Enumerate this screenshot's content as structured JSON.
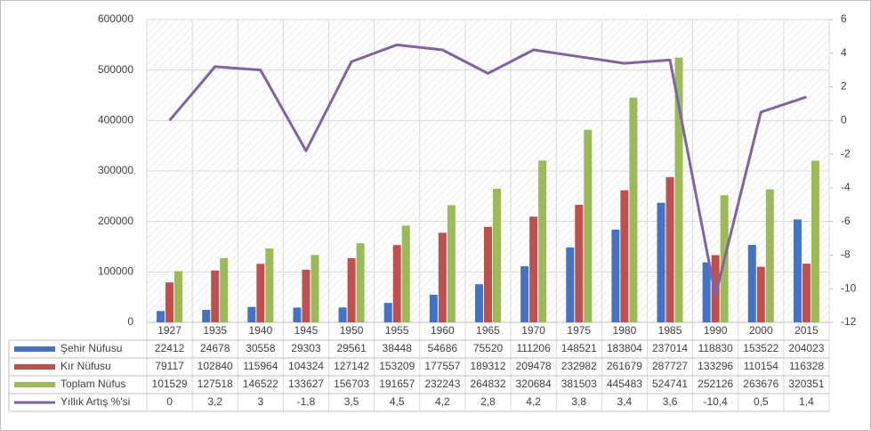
{
  "chart_data": {
    "type": "bar",
    "categories": [
      "1927",
      "1935",
      "1940",
      "1945",
      "1950",
      "1955",
      "1960",
      "1965",
      "1970",
      "1975",
      "1980",
      "1985",
      "1990",
      "2000",
      "2015"
    ],
    "series": [
      {
        "name": "Şehir Nüfusu",
        "type": "bar",
        "color": "#4472c4",
        "values": [
          22412,
          24678,
          30558,
          29303,
          29561,
          38448,
          54686,
          75520,
          111206,
          148521,
          183804,
          237014,
          118830,
          153522,
          204023
        ]
      },
      {
        "name": "Kır Nüfusu",
        "type": "bar",
        "color": "#c0504d",
        "values": [
          79117,
          102840,
          115964,
          104324,
          127142,
          153209,
          177557,
          189312,
          209478,
          232982,
          261679,
          287727,
          133296,
          110154,
          116328
        ]
      },
      {
        "name": "Toplam Nüfus",
        "type": "bar",
        "color": "#9bbb59",
        "values": [
          101529,
          127518,
          146522,
          133627,
          156703,
          191657,
          232243,
          264832,
          320684,
          381503,
          445483,
          524741,
          252126,
          263676,
          320351
        ]
      },
      {
        "name": "Yıllık Artış %'si",
        "type": "line",
        "axis": "y2",
        "color": "#8064a2",
        "values": [
          0,
          3.2,
          3,
          -1.8,
          3.5,
          4.5,
          4.2,
          2.8,
          4.2,
          3.8,
          3.4,
          3.6,
          -10.4,
          0.5,
          1.4
        ],
        "value_labels": [
          "0",
          "3,2",
          "3",
          "-1,8",
          "3,5",
          "4,5",
          "4,2",
          "2,8",
          "4,2",
          "3,8",
          "3,4",
          "3,6",
          "-10,4",
          "0,5",
          "1,4"
        ]
      }
    ],
    "ylim": [
      0,
      600000
    ],
    "yticks": [
      0,
      100000,
      200000,
      300000,
      400000,
      500000,
      600000
    ],
    "y2lim": [
      -12,
      6
    ],
    "y2ticks": [
      -12,
      -10,
      -8,
      -6,
      -4,
      -2,
      0,
      2,
      4,
      6
    ],
    "grid": true
  }
}
